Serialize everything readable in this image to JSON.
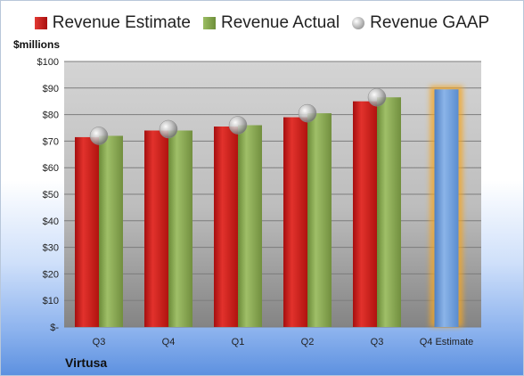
{
  "chart_data": {
    "type": "bar",
    "unit_label": "$millions",
    "company": "Virtusa",
    "categories": [
      "Q3",
      "Q4",
      "Q1",
      "Q2",
      "Q3",
      "Q4 Estimate"
    ],
    "yticks": [
      "$-",
      "$10",
      "$20",
      "$30",
      "$40",
      "$50",
      "$60",
      "$70",
      "$80",
      "$90",
      "$100"
    ],
    "ylim": [
      0,
      100
    ],
    "grid": true,
    "legend_position": "top",
    "series": [
      {
        "name": "Revenue Estimate",
        "values": [
          71.5,
          74.0,
          75.5,
          79.0,
          85.0,
          null
        ],
        "color": "#c8201f"
      },
      {
        "name": "Revenue Actual",
        "values": [
          72.0,
          74.0,
          76.0,
          80.5,
          86.5,
          null
        ],
        "color": "#8aab55"
      },
      {
        "name": "Revenue GAAP",
        "values": [
          72.0,
          74.5,
          76.0,
          80.5,
          86.5,
          null
        ],
        "color": "#b8b8b8"
      },
      {
        "name": "Q4 Estimate",
        "values": [
          null,
          null,
          null,
          null,
          null,
          89.5
        ],
        "color": "#6f9fd8"
      }
    ]
  }
}
